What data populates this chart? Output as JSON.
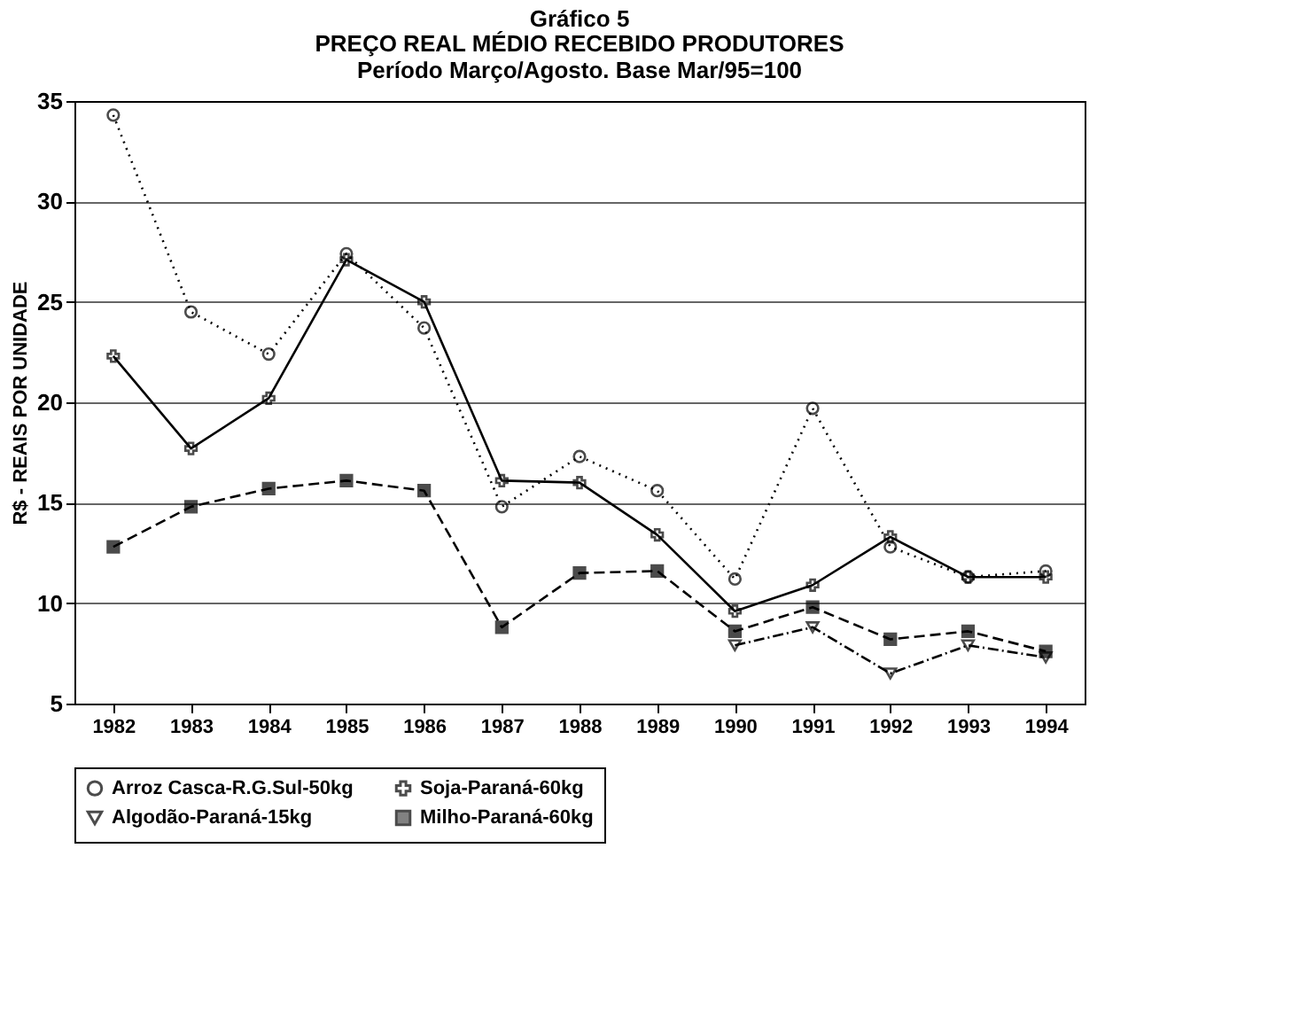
{
  "chart_data": {
    "type": "line",
    "title": "Gráfico 5",
    "subtitle": "PREÇO REAL MÉDIO RECEBIDO PRODUTORES",
    "annotations": [
      "Período Março/Agosto. Base Mar/95=100"
    ],
    "ylabel": "R$ - REAIS POR UNIDADE",
    "categories": [
      "1982",
      "1983",
      "1984",
      "1985",
      "1986",
      "1987",
      "1988",
      "1989",
      "1990",
      "1991",
      "1992",
      "1993",
      "1994"
    ],
    "series": [
      {
        "name": "Arroz Casca-R.G.Sul-50kg",
        "color": "#000000",
        "marker": "circle",
        "line_style": "dotted",
        "values": [
          34.3,
          24.5,
          22.4,
          27.4,
          23.7,
          14.8,
          17.3,
          15.6,
          11.2,
          19.7,
          12.8,
          11.3,
          11.6
        ]
      },
      {
        "name": "Soja-Paraná-60kg",
        "color": "#000000",
        "marker": "cross",
        "line_style": "solid",
        "values": [
          22.3,
          17.7,
          20.2,
          27.1,
          25.0,
          16.1,
          16.0,
          13.4,
          9.6,
          10.9,
          13.3,
          11.3,
          11.3
        ]
      },
      {
        "name": "Algodão-Paraná-15kg",
        "color": "#000000",
        "marker": "triangle",
        "line_style": "dashdot",
        "values": [
          null,
          null,
          null,
          null,
          null,
          null,
          null,
          null,
          7.9,
          8.8,
          6.5,
          7.9,
          7.3
        ]
      },
      {
        "name": "Milho-Paraná-60kg",
        "color": "#000000",
        "marker": "square",
        "line_style": "dashed",
        "values": [
          12.8,
          14.8,
          15.7,
          16.1,
          15.6,
          8.8,
          11.5,
          11.6,
          8.6,
          9.8,
          8.2,
          8.6,
          7.6
        ]
      }
    ],
    "ylim": [
      5,
      35
    ],
    "yticks": [
      5,
      10,
      15,
      20,
      25,
      30,
      35
    ],
    "grid": "y",
    "legend": "bottom"
  }
}
